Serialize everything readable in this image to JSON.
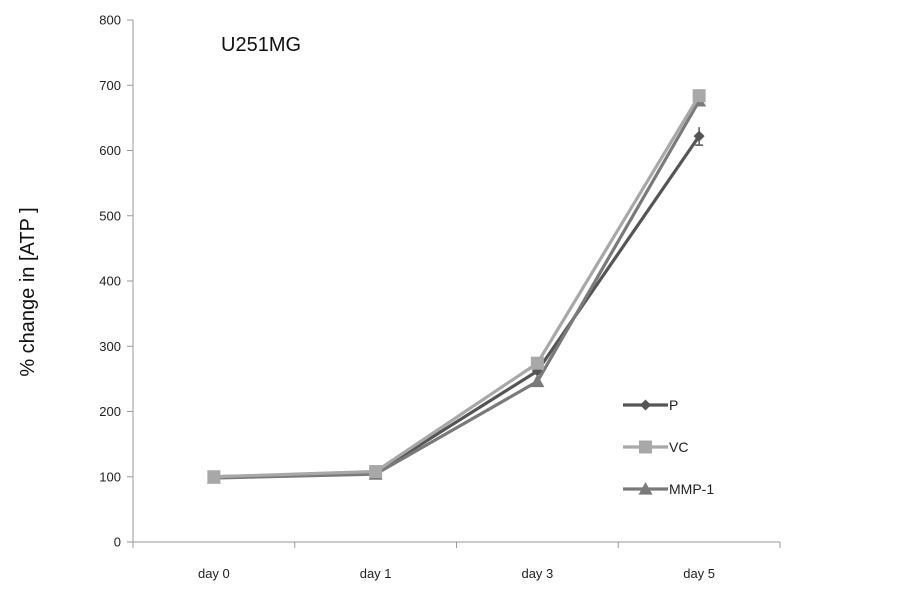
{
  "chart_data": {
    "type": "line",
    "title": "U251MG",
    "xlabel": "",
    "ylabel": "% change in [ATP ]",
    "categories": [
      "day 0",
      "day 1",
      "day 3",
      "day 5"
    ],
    "ylim": [
      0,
      800
    ],
    "yticks": [
      0,
      100,
      200,
      300,
      400,
      500,
      600,
      700,
      800
    ],
    "grid": false,
    "legend_position": "right",
    "series": [
      {
        "name": "P",
        "values": [
          100,
          106,
          262,
          622
        ],
        "color": "#555555",
        "marker": "diamond"
      },
      {
        "name": "VC",
        "values": [
          100,
          108,
          274,
          684
        ],
        "color": "#a8a8a8",
        "marker": "square"
      },
      {
        "name": "MMP-1",
        "values": [
          98,
          104,
          246,
          676
        ],
        "color": "#7a7a7a",
        "marker": "triangle"
      }
    ]
  }
}
